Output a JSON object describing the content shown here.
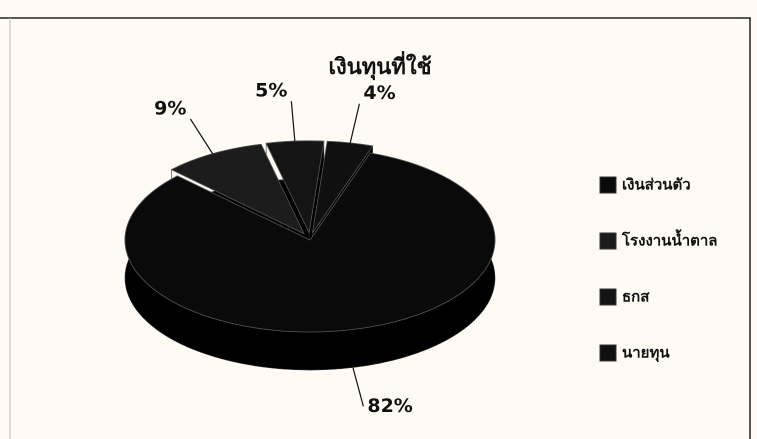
{
  "chart_data": {
    "type": "pie",
    "title": "เงินทุนที่ใช้",
    "categories": [
      "เงินส่วนตัว",
      "โรงงานน้ำตาล",
      "ธกส",
      "นายทุน"
    ],
    "values": [
      82,
      9,
      5,
      4
    ],
    "value_labels": [
      "82%",
      "9%",
      "5%",
      "4%"
    ],
    "colors": [
      "#0a0a0a",
      "#1c1c1c",
      "#141414",
      "#101010"
    ],
    "legend": "right"
  }
}
